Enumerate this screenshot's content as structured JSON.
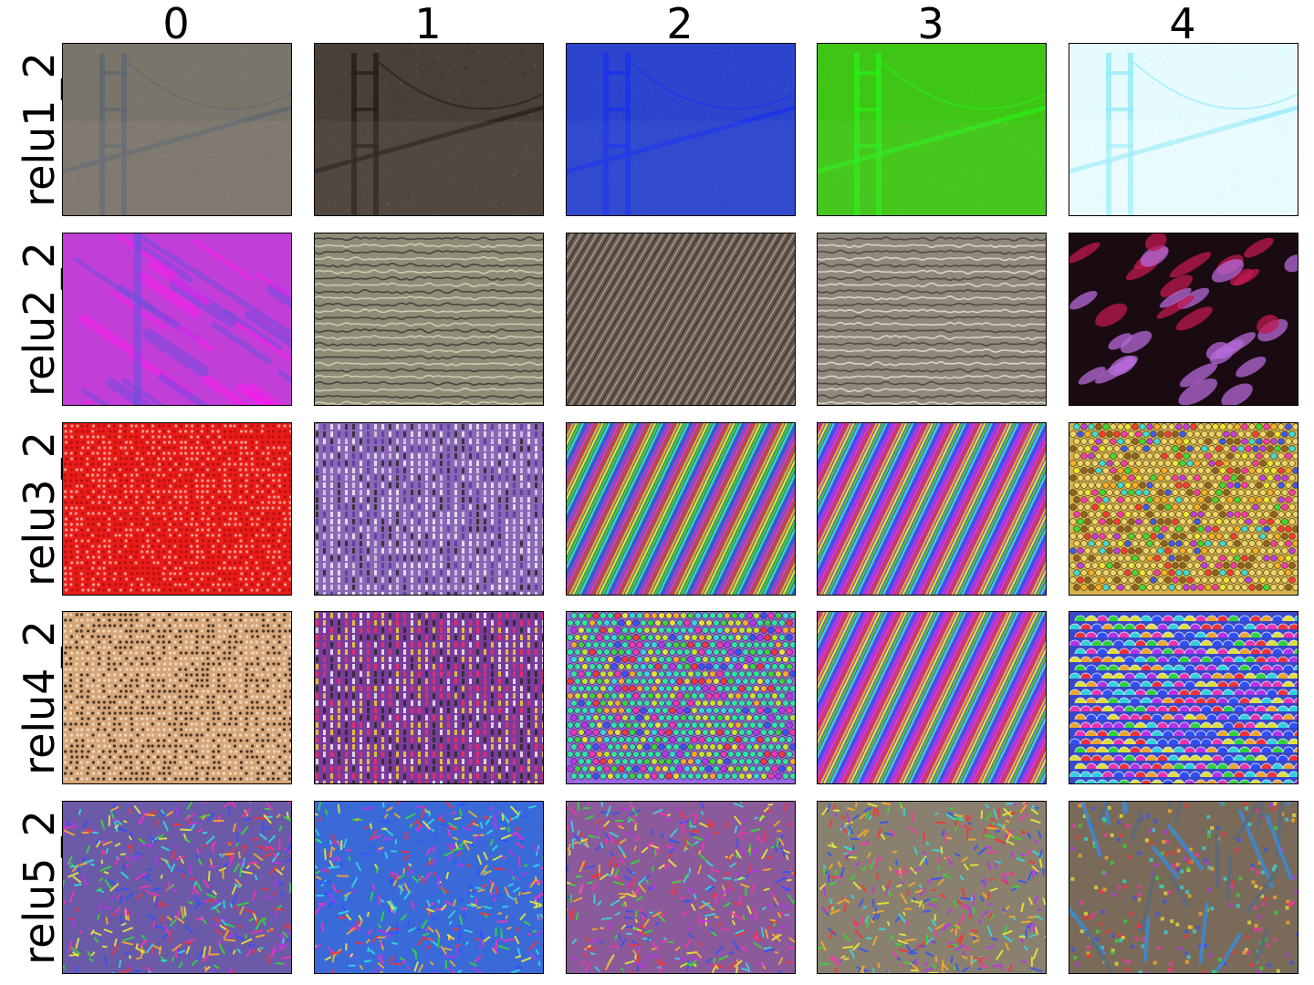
{
  "column_labels": [
    "0",
    "1",
    "2",
    "3",
    "4"
  ],
  "row_labels": [
    "relu1_2",
    "relu2_2",
    "relu3_2",
    "relu4_2",
    "relu5_2"
  ],
  "panels": [
    [
      {
        "bg": "#7a756b",
        "fg": "#5e6671",
        "hi": "#9c978c",
        "style": "bridge"
      },
      {
        "bg": "#4a4038",
        "fg": "#221b16",
        "hi": "#7a6f62",
        "style": "bridge"
      },
      {
        "bg": "#2d45cc",
        "fg": "#1a2ff0",
        "hi": "#4d62d8",
        "style": "bridge"
      },
      {
        "bg": "#3ec515",
        "fg": "#29f018",
        "hi": "#6fd24a",
        "style": "bridge"
      },
      {
        "bg": "#e6fbfd",
        "fg": "#8ee9f8",
        "hi": "#ffffff",
        "style": "bridge"
      }
    ],
    [
      {
        "bg": "#c23fd7",
        "fg": "#6c4ee0",
        "hi": "#ff19f0",
        "style": "smear"
      },
      {
        "bg": "#8f8c78",
        "fg": "#3c3a32",
        "hi": "#d6d6b8",
        "style": "waves"
      },
      {
        "bg": "#6a5e54",
        "fg": "#2a211c",
        "hi": "#c8bcb0",
        "style": "diag"
      },
      {
        "bg": "#8f887c",
        "fg": "#4a4238",
        "hi": "#e6dfd2",
        "style": "waves"
      },
      {
        "bg": "#1a0a12",
        "fg": "#c01850",
        "hi": "#b66ad8",
        "style": "blobs"
      }
    ],
    [
      {
        "bg": "#e81c18",
        "fg": "#b30e10",
        "hi": "#f3b0a8",
        "style": "dots"
      },
      {
        "bg": "#8a67b6",
        "fg": "#5a3ca0",
        "hi": "#d8cce8",
        "style": "weave"
      },
      {
        "bg": "#4a6a8a",
        "fg": "#ff3a3a",
        "hi": "#3ae6ff",
        "style": "rainbow"
      },
      {
        "bg": "#6a4ad0",
        "fg": "#ff28d8",
        "hi": "#28ffd8",
        "style": "rainbow"
      },
      {
        "bg": "#d8b24a",
        "fg": "#8c5a1a",
        "hi": "#f2d86a",
        "style": "cells"
      }
    ],
    [
      {
        "bg": "#d4a67a",
        "fg": "#2c2018",
        "hi": "#f8e2c2",
        "style": "dots"
      },
      {
        "bg": "#7a3c9a",
        "fg": "#f02a6a",
        "hi": "#f4d22a",
        "style": "weave"
      },
      {
        "bg": "#9a68e0",
        "fg": "#c8f028",
        "hi": "#28f0a0",
        "style": "cells"
      },
      {
        "bg": "#7a48c8",
        "fg": "#2adc48",
        "hi": "#f03ac8",
        "style": "rainbow"
      },
      {
        "bg": "#3848c8",
        "fg": "#f04848",
        "hi": "#f8c828",
        "style": "scales"
      }
    ],
    [
      {
        "bg": "#6a5aa8",
        "fg": "#e83a3a",
        "hi": "#3ad8e8",
        "style": "chaos"
      },
      {
        "bg": "#3a6ad8",
        "fg": "#e8a83a",
        "hi": "#e83a8a",
        "style": "chaos"
      },
      {
        "bg": "#8a5a9a",
        "fg": "#e8483a",
        "hi": "#48c8f0",
        "style": "chaos"
      },
      {
        "bg": "#8a8070",
        "fg": "#3ac8d8",
        "hi": "#e8d83a",
        "style": "chaos"
      },
      {
        "bg": "#7a6a5a",
        "fg": "#3a8ad8",
        "hi": "#d83a48",
        "style": "sticks"
      }
    ]
  ]
}
